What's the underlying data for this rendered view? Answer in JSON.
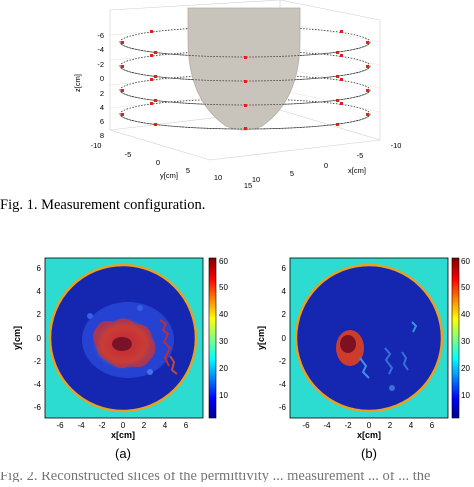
{
  "figure1": {
    "caption": "Fig. 1.   Measurement configuration.",
    "axes": {
      "zlabel": "z[cm]",
      "ylabel": "y[cm]",
      "xlabel": "x[cm]",
      "z_ticks": [
        "-6",
        "-4",
        "-2",
        "0",
        "2",
        "4",
        "6",
        "8"
      ],
      "y_ticks": [
        "-10",
        "-5",
        "0",
        "5",
        "10",
        "15"
      ],
      "x_ticks": [
        "-10",
        "-5",
        "0",
        "5",
        "10"
      ]
    }
  },
  "figure2": {
    "left": {
      "ylabel": "y[cm]",
      "xlabel": "x[cm]",
      "y_ticks": [
        "6",
        "4",
        "2",
        "0",
        "-2",
        "-4",
        "-6"
      ],
      "x_ticks": [
        "-6",
        "-4",
        "-2",
        "0",
        "2",
        "4",
        "6"
      ],
      "colorbar_ticks": [
        "60",
        "50",
        "40",
        "30",
        "20",
        "10"
      ],
      "sublabel": "(a)"
    },
    "right": {
      "ylabel": "y[cm]",
      "xlabel": "x[cm]",
      "y_ticks": [
        "6",
        "4",
        "2",
        "0",
        "-2",
        "-4",
        "-6"
      ],
      "x_ticks": [
        "-6",
        "-4",
        "-2",
        "0",
        "2",
        "4",
        "6"
      ],
      "colorbar_ticks": [
        "60",
        "50",
        "40",
        "30",
        "20",
        "10"
      ],
      "sublabel": "(b)"
    },
    "colors": {
      "background": "#29dcd0",
      "outside": "#30d6cc",
      "interior": "#1a2ab8",
      "ring": "#e8a020",
      "hot": "#e03020",
      "core": "#7a0a10"
    }
  },
  "footer_caption_fragment": "Fig. 2.   Reconstructed slices of the permittivity ... measurement ... of ... the"
}
